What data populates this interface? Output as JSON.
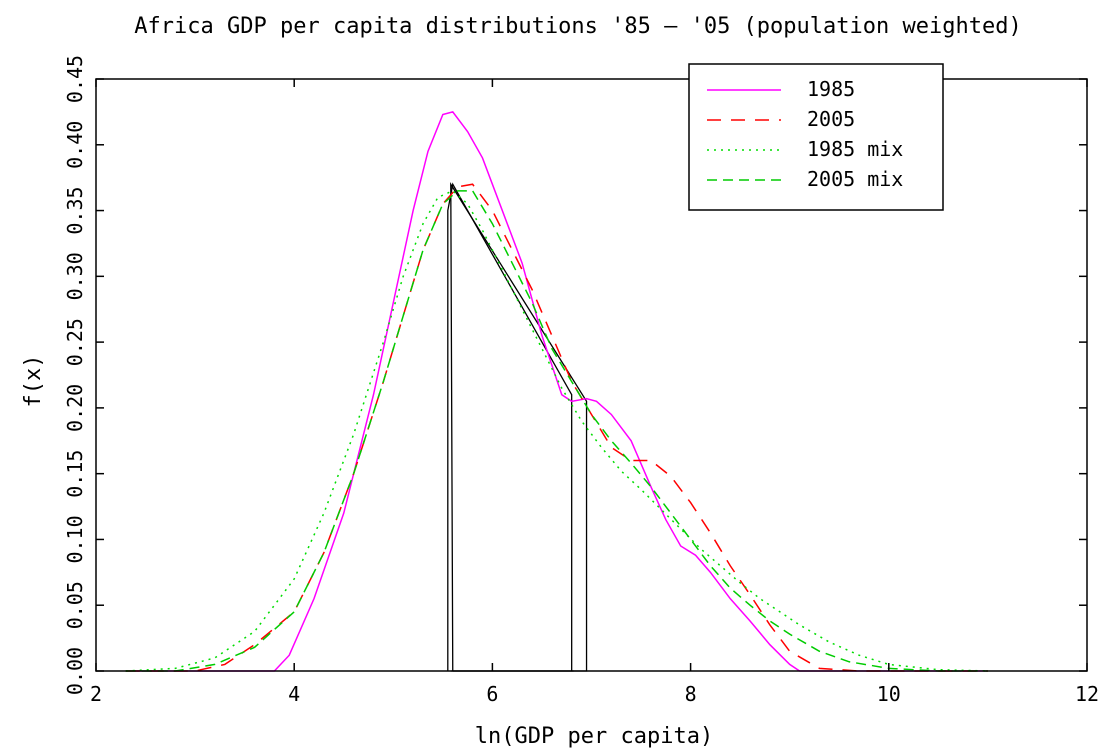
{
  "chart_data": {
    "type": "line",
    "title": "Africa GDP per capita distributions '85 — '05 (population weighted)",
    "xlabel": "ln(GDP per capita)",
    "ylabel": "f(x)",
    "xlim": [
      2,
      12
    ],
    "ylim": [
      0,
      0.45
    ],
    "xticks": [
      "2",
      "4",
      "6",
      "8",
      "10",
      "12"
    ],
    "yticks": [
      "0.00",
      "0.05",
      "0.10",
      "0.15",
      "0.20",
      "0.25",
      "0.30",
      "0.35",
      "0.40",
      "0.45"
    ],
    "grid": false,
    "legend_position": "top-right",
    "series": [
      {
        "name": "1985",
        "color": "#ff00ff",
        "style": "solid",
        "x": [
          2.3,
          3.0,
          3.5,
          3.8,
          3.95,
          4.2,
          4.5,
          4.8,
          5.0,
          5.2,
          5.35,
          5.5,
          5.6,
          5.75,
          5.9,
          6.1,
          6.3,
          6.5,
          6.7,
          6.8,
          6.95,
          7.05,
          7.2,
          7.4,
          7.6,
          7.75,
          7.9,
          8.05,
          8.2,
          8.4,
          8.6,
          8.8,
          9.0,
          9.1,
          9.5,
          10.0,
          11.0
        ],
        "y": [
          0.0,
          0.0,
          0.0,
          0.0,
          0.012,
          0.055,
          0.12,
          0.21,
          0.28,
          0.35,
          0.395,
          0.423,
          0.425,
          0.41,
          0.39,
          0.35,
          0.31,
          0.255,
          0.21,
          0.205,
          0.207,
          0.205,
          0.195,
          0.175,
          0.14,
          0.115,
          0.095,
          0.088,
          0.075,
          0.055,
          0.038,
          0.02,
          0.005,
          0.0,
          0.0,
          0.0,
          0.0
        ]
      },
      {
        "name": "2005",
        "color": "#ff0000",
        "style": "dashed",
        "x": [
          2.3,
          3.0,
          3.3,
          3.6,
          4.0,
          4.3,
          4.6,
          4.9,
          5.1,
          5.3,
          5.5,
          5.65,
          5.8,
          6.0,
          6.2,
          6.4,
          6.6,
          6.8,
          7.0,
          7.2,
          7.4,
          7.6,
          7.8,
          8.0,
          8.2,
          8.4,
          8.6,
          8.8,
          9.0,
          9.3,
          9.7,
          10.0,
          11.0
        ],
        "y": [
          0.0,
          0.0,
          0.005,
          0.02,
          0.045,
          0.09,
          0.15,
          0.22,
          0.27,
          0.32,
          0.355,
          0.368,
          0.37,
          0.35,
          0.32,
          0.29,
          0.255,
          0.22,
          0.195,
          0.17,
          0.16,
          0.16,
          0.148,
          0.128,
          0.105,
          0.08,
          0.058,
          0.035,
          0.015,
          0.002,
          0.0,
          0.0,
          0.0
        ]
      },
      {
        "name": "1985 mix",
        "color": "#00dd00",
        "style": "dotted",
        "x": [
          2.3,
          2.8,
          3.2,
          3.6,
          4.0,
          4.3,
          4.6,
          4.9,
          5.1,
          5.3,
          5.45,
          5.6,
          5.75,
          5.9,
          6.1,
          6.3,
          6.5,
          6.7,
          6.9,
          7.1,
          7.3,
          7.5,
          7.7,
          7.9,
          8.1,
          8.3,
          8.5,
          8.7,
          8.9,
          9.1,
          9.4,
          9.7,
          10.0,
          10.5,
          11.0
        ],
        "y": [
          0.0,
          0.002,
          0.01,
          0.03,
          0.07,
          0.12,
          0.18,
          0.25,
          0.3,
          0.34,
          0.36,
          0.365,
          0.355,
          0.335,
          0.305,
          0.275,
          0.245,
          0.215,
          0.19,
          0.17,
          0.152,
          0.138,
          0.123,
          0.108,
          0.093,
          0.08,
          0.067,
          0.055,
          0.045,
          0.035,
          0.022,
          0.012,
          0.005,
          0.001,
          0.0
        ]
      },
      {
        "name": "2005 mix",
        "color": "#00cc00",
        "style": "dash-dot",
        "x": [
          2.3,
          2.8,
          3.2,
          3.6,
          4.0,
          4.3,
          4.6,
          4.9,
          5.1,
          5.3,
          5.5,
          5.65,
          5.8,
          6.0,
          6.2,
          6.4,
          6.6,
          6.8,
          7.0,
          7.2,
          7.4,
          7.6,
          7.8,
          8.0,
          8.2,
          8.4,
          8.6,
          8.8,
          9.0,
          9.3,
          9.6,
          10.0,
          10.5,
          11.0
        ],
        "y": [
          0.0,
          0.0,
          0.005,
          0.018,
          0.045,
          0.09,
          0.15,
          0.22,
          0.27,
          0.32,
          0.355,
          0.365,
          0.365,
          0.34,
          0.31,
          0.28,
          0.245,
          0.22,
          0.195,
          0.175,
          0.158,
          0.14,
          0.12,
          0.1,
          0.08,
          0.063,
          0.05,
          0.038,
          0.028,
          0.015,
          0.007,
          0.002,
          0.0,
          0.0
        ]
      }
    ],
    "annotations": [
      {
        "description": "black outline polygon",
        "color": "#000000",
        "x": [
          5.55,
          5.55,
          5.6,
          6.8,
          6.8,
          6.82,
          5.58
        ],
        "y": [
          0.0,
          0.35,
          0.37,
          0.21,
          0.0,
          0.0,
          0.0
        ]
      },
      {
        "description": "black outline polygon",
        "color": "#000000",
        "x": [
          5.6,
          5.58,
          6.95,
          6.95,
          5.6
        ],
        "y": [
          0.0,
          0.37,
          0.205,
          0.0,
          0.0
        ]
      }
    ]
  }
}
